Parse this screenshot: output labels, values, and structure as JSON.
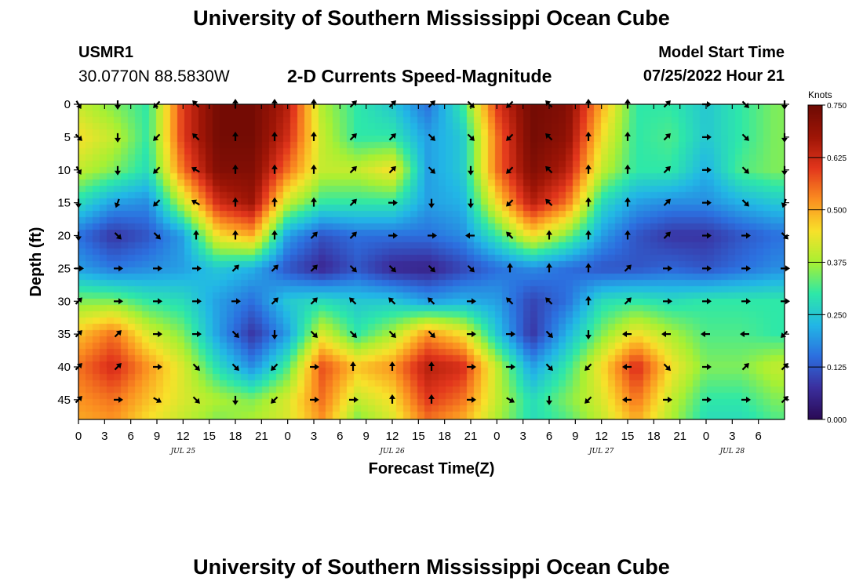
{
  "header": {
    "title": "University of Southern Mississippi Ocean Cube",
    "station": "USMR1",
    "coordinates": "30.0770N  88.5830W",
    "subtitle": "2-D Currents Speed-Magnitude",
    "model_start_label": "Model Start Time",
    "model_start_value": "07/25/2022 Hour 21",
    "footer_title": "University of Southern Mississippi Ocean Cube"
  },
  "colors": {
    "scale": [
      "#2a0a55",
      "#3b2f9e",
      "#2c6fdf",
      "#22b7e6",
      "#2ee8a8",
      "#a8f032",
      "#f8e12a",
      "#fb8e20",
      "#e2361c",
      "#9e1506",
      "#6e0a04"
    ],
    "arrow": "#000000",
    "axis": "#000000"
  },
  "chart_data": {
    "type": "heatmap",
    "title": "2-D Currents Speed-Magnitude",
    "xlabel": "Forecast Time(Z)",
    "ylabel": "Depth (ft)",
    "x_unit": "forecast hour",
    "x_range": [
      0,
      81
    ],
    "y_range": [
      0,
      48
    ],
    "y_inverted": true,
    "x_ticks": [
      {
        "h": 0,
        "label": "0"
      },
      {
        "h": 3,
        "label": "3"
      },
      {
        "h": 6,
        "label": "6"
      },
      {
        "h": 9,
        "label": "9"
      },
      {
        "h": 12,
        "label": "12"
      },
      {
        "h": 15,
        "label": "15"
      },
      {
        "h": 18,
        "label": "18"
      },
      {
        "h": 21,
        "label": "21"
      },
      {
        "h": 24,
        "label": "0"
      },
      {
        "h": 27,
        "label": "3"
      },
      {
        "h": 30,
        "label": "6"
      },
      {
        "h": 33,
        "label": "9"
      },
      {
        "h": 36,
        "label": "12"
      },
      {
        "h": 39,
        "label": "15"
      },
      {
        "h": 42,
        "label": "18"
      },
      {
        "h": 45,
        "label": "21"
      },
      {
        "h": 48,
        "label": "0"
      },
      {
        "h": 51,
        "label": "3"
      },
      {
        "h": 54,
        "label": "6"
      },
      {
        "h": 57,
        "label": "9"
      },
      {
        "h": 60,
        "label": "12"
      },
      {
        "h": 63,
        "label": "15"
      },
      {
        "h": 66,
        "label": "18"
      },
      {
        "h": 69,
        "label": "21"
      },
      {
        "h": 72,
        "label": "0"
      },
      {
        "h": 75,
        "label": "3"
      },
      {
        "h": 78,
        "label": "6"
      }
    ],
    "date_labels": [
      {
        "h": 12,
        "label": "JUL 25"
      },
      {
        "h": 36,
        "label": "JUL 26"
      },
      {
        "h": 60,
        "label": "JUL 27"
      },
      {
        "h": 75,
        "label": "JUL 28"
      }
    ],
    "y_ticks": [
      0,
      5,
      10,
      15,
      20,
      25,
      30,
      35,
      40,
      45
    ],
    "colorbar": {
      "label": "Knots",
      "min": 0.0,
      "max": 0.75,
      "ticks": [
        "0.000",
        "0.125",
        "0.250",
        "0.375",
        "0.500",
        "0.625",
        "0.750"
      ]
    },
    "times": [
      0,
      4,
      8,
      12,
      16,
      20,
      24,
      28,
      32,
      36,
      40,
      44,
      48,
      52,
      56,
      60,
      64,
      68,
      72,
      76,
      80
    ],
    "depths": [
      0,
      5,
      10,
      15,
      20,
      25,
      30,
      35,
      40,
      45,
      48
    ],
    "speed_knots": [
      [
        0.4,
        0.35,
        0.3,
        0.6,
        0.74,
        0.74,
        0.65,
        0.38,
        0.3,
        0.25,
        0.15,
        0.3,
        0.6,
        0.74,
        0.72,
        0.5,
        0.3,
        0.3,
        0.25,
        0.3,
        0.35
      ],
      [
        0.45,
        0.4,
        0.3,
        0.6,
        0.74,
        0.74,
        0.62,
        0.4,
        0.3,
        0.3,
        0.2,
        0.25,
        0.55,
        0.74,
        0.7,
        0.45,
        0.3,
        0.32,
        0.25,
        0.3,
        0.35
      ],
      [
        0.4,
        0.35,
        0.28,
        0.55,
        0.72,
        0.72,
        0.55,
        0.4,
        0.4,
        0.45,
        0.2,
        0.25,
        0.55,
        0.72,
        0.65,
        0.4,
        0.3,
        0.3,
        0.22,
        0.32,
        0.35
      ],
      [
        0.28,
        0.2,
        0.18,
        0.4,
        0.62,
        0.68,
        0.4,
        0.3,
        0.3,
        0.3,
        0.2,
        0.22,
        0.45,
        0.65,
        0.55,
        0.28,
        0.2,
        0.18,
        0.18,
        0.22,
        0.25
      ],
      [
        0.15,
        0.08,
        0.12,
        0.2,
        0.45,
        0.5,
        0.2,
        0.12,
        0.15,
        0.15,
        0.15,
        0.18,
        0.3,
        0.45,
        0.35,
        0.2,
        0.12,
        0.08,
        0.08,
        0.12,
        0.15
      ],
      [
        0.2,
        0.16,
        0.18,
        0.2,
        0.25,
        0.22,
        0.12,
        0.06,
        0.12,
        0.06,
        0.05,
        0.1,
        0.15,
        0.18,
        0.15,
        0.12,
        0.12,
        0.14,
        0.12,
        0.15,
        0.18
      ],
      [
        0.35,
        0.35,
        0.3,
        0.28,
        0.2,
        0.15,
        0.25,
        0.28,
        0.25,
        0.25,
        0.2,
        0.22,
        0.2,
        0.1,
        0.15,
        0.28,
        0.3,
        0.28,
        0.3,
        0.3,
        0.3
      ],
      [
        0.48,
        0.55,
        0.42,
        0.35,
        0.2,
        0.08,
        0.2,
        0.42,
        0.3,
        0.38,
        0.52,
        0.45,
        0.25,
        0.08,
        0.22,
        0.35,
        0.45,
        0.38,
        0.32,
        0.32,
        0.3
      ],
      [
        0.55,
        0.62,
        0.52,
        0.42,
        0.28,
        0.18,
        0.32,
        0.58,
        0.48,
        0.52,
        0.65,
        0.62,
        0.4,
        0.2,
        0.3,
        0.45,
        0.62,
        0.45,
        0.35,
        0.35,
        0.4
      ],
      [
        0.52,
        0.55,
        0.48,
        0.42,
        0.38,
        0.35,
        0.42,
        0.55,
        0.4,
        0.45,
        0.6,
        0.55,
        0.4,
        0.28,
        0.35,
        0.42,
        0.55,
        0.4,
        0.3,
        0.3,
        0.35
      ],
      [
        0.5,
        0.52,
        0.45,
        0.4,
        0.35,
        0.38,
        0.42,
        0.52,
        0.35,
        0.42,
        0.55,
        0.5,
        0.38,
        0.28,
        0.32,
        0.4,
        0.5,
        0.38,
        0.28,
        0.28,
        0.32
      ]
    ],
    "arrow_times": [
      0,
      4.5,
      9,
      13.5,
      18,
      22.5,
      27,
      31.5,
      36,
      40.5,
      45,
      49.5,
      54,
      58.5,
      63,
      67.5,
      72,
      76.5,
      81
    ],
    "arrow_depths": [
      0,
      5,
      10,
      15,
      20,
      25,
      30,
      35,
      40,
      45
    ],
    "direction_deg": [
      [
        150,
        180,
        225,
        315,
        0,
        0,
        0,
        45,
        45,
        45,
        135,
        225,
        315,
        0,
        0,
        45,
        90,
        135,
        180
      ],
      [
        135,
        180,
        225,
        315,
        0,
        0,
        0,
        45,
        45,
        135,
        135,
        225,
        315,
        0,
        0,
        45,
        90,
        135,
        180
      ],
      [
        150,
        180,
        225,
        300,
        0,
        0,
        0,
        45,
        45,
        135,
        180,
        225,
        315,
        0,
        0,
        45,
        90,
        135,
        180
      ],
      [
        180,
        200,
        225,
        300,
        0,
        0,
        0,
        45,
        90,
        180,
        180,
        225,
        315,
        0,
        0,
        45,
        90,
        135,
        200
      ],
      [
        180,
        135,
        135,
        0,
        0,
        0,
        45,
        45,
        90,
        90,
        270,
        315,
        0,
        0,
        0,
        45,
        90,
        90,
        135
      ],
      [
        90,
        90,
        90,
        90,
        45,
        45,
        45,
        135,
        135,
        135,
        135,
        0,
        0,
        0,
        45,
        90,
        90,
        90,
        90
      ],
      [
        45,
        90,
        90,
        90,
        90,
        45,
        45,
        315,
        315,
        315,
        90,
        315,
        315,
        0,
        45,
        90,
        90,
        90,
        90
      ],
      [
        45,
        45,
        90,
        90,
        135,
        180,
        135,
        135,
        135,
        135,
        90,
        90,
        135,
        180,
        270,
        270,
        270,
        270,
        225
      ],
      [
        45,
        45,
        90,
        135,
        135,
        225,
        90,
        0,
        0,
        0,
        90,
        90,
        135,
        225,
        270,
        135,
        90,
        45,
        45
      ],
      [
        45,
        90,
        120,
        135,
        180,
        225,
        90,
        90,
        0,
        0,
        90,
        120,
        180,
        225,
        270,
        90,
        90,
        90,
        45
      ]
    ]
  }
}
